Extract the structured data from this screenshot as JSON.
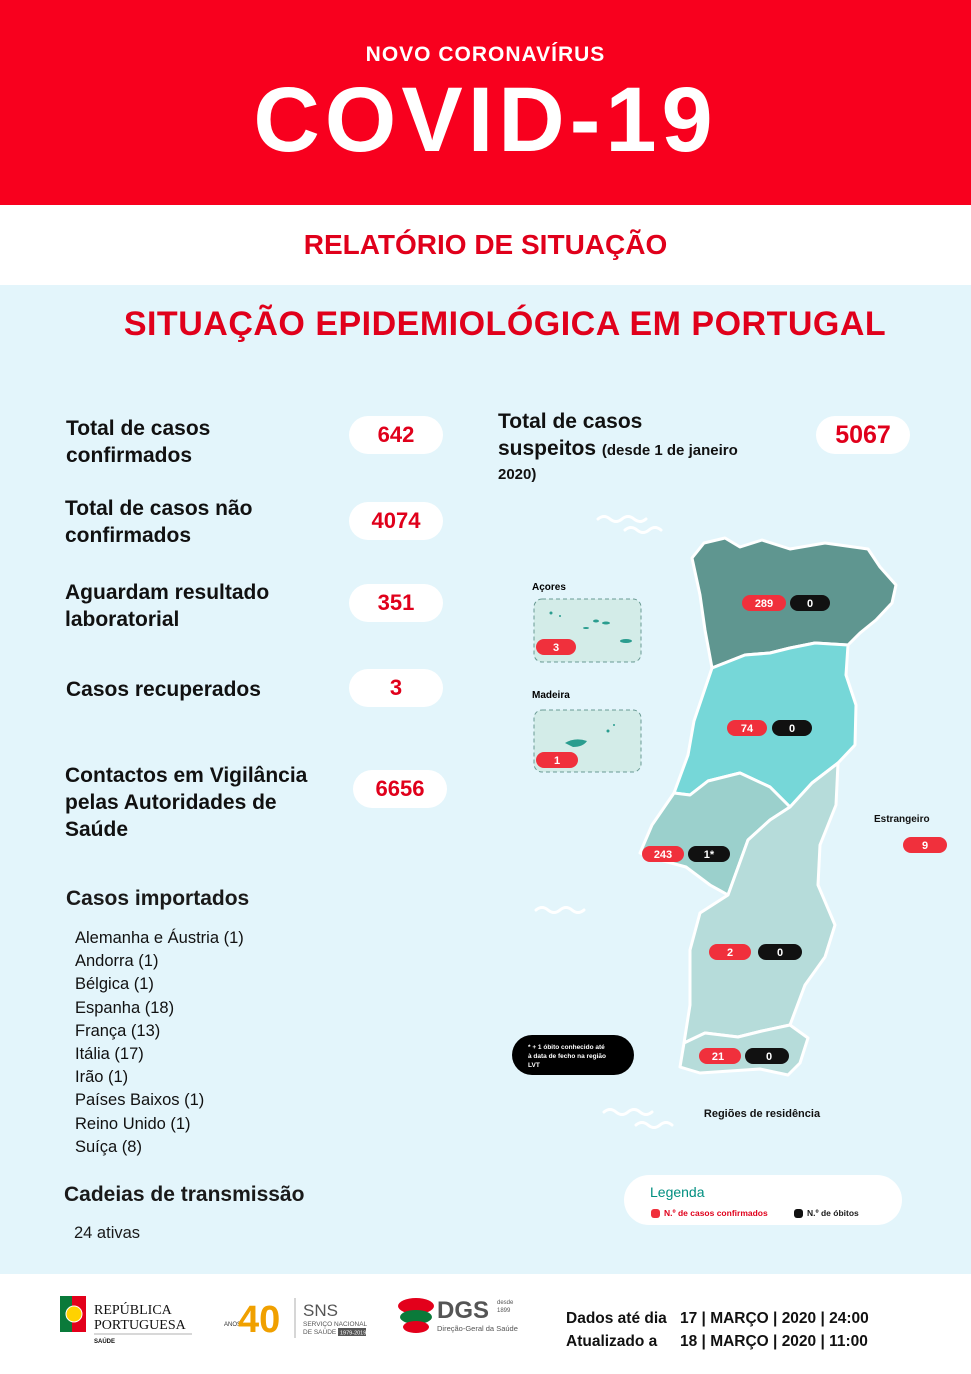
{
  "header": {
    "subtitle": "NOVO CORONAVÍRUS",
    "title": "COVID-19"
  },
  "report_title": "RELATÓRIO DE SITUAÇÃO",
  "section_title": "SITUAÇÃO EPIDEMIOLÓGICA EM PORTUGAL",
  "stats": {
    "confirmed": {
      "label_1": "Total de casos",
      "label_2": "confirmados",
      "value": "642"
    },
    "not_confirmed": {
      "label_1": "Total de casos não",
      "label_2": "confirmados",
      "value": "4074"
    },
    "awaiting": {
      "label_1": "Aguardam resultado",
      "label_2": "laboratorial",
      "value": "351"
    },
    "recovered": {
      "label": "Casos recuperados",
      "value": "3"
    },
    "contacts": {
      "label_1": "Contactos em Vigilância",
      "label_2": "pelas Autoridades de",
      "label_3": "Saúde",
      "value": "6656"
    },
    "suspected": {
      "label_1": "Total de casos",
      "label_2": "suspeitos",
      "label_2_small": "(desde 1 de janeiro",
      "label_3": "2020)",
      "value": "5067"
    }
  },
  "imported": {
    "title": "Casos importados",
    "items": [
      "Alemanha e Áustria (1)",
      "Andorra (1)",
      "Bélgica (1)",
      "Espanha (18)",
      "França (13)",
      "Itália (17)",
      "Irão (1)",
      "Países Baixos (1)",
      "Reino Unido (1)",
      "Suíça (8)"
    ]
  },
  "transmission": {
    "title": "Cadeias de transmissão",
    "value": "24 ativas"
  },
  "map": {
    "azores_label": "Açores",
    "azores_cases": "3",
    "madeira_label": "Madeira",
    "madeira_cases": "1",
    "north": {
      "cases": "289",
      "deaths": "0"
    },
    "centre": {
      "cases": "74",
      "deaths": "0"
    },
    "lvt": {
      "cases": "243",
      "deaths": "1*"
    },
    "alentejo": {
      "cases": "2",
      "deaths": "0"
    },
    "algarve": {
      "cases": "21",
      "deaths": "0"
    },
    "abroad_label": "Estrangeiro",
    "abroad_cases": "9",
    "note_1": "* + 1 óbito conhecido até",
    "note_2": "à data de fecho na região",
    "note_3": "LVT",
    "caption": "Regiões de residência",
    "colors": {
      "north": "#5f9690",
      "centre": "#76d7d8",
      "lvt": "#9bd0cc",
      "south": "#b6dcda",
      "cases": "#f0303c",
      "deaths": "#111111"
    }
  },
  "legend": {
    "title": "Legenda",
    "cases": "N.º de casos confirmados",
    "deaths": "N.º de óbitos"
  },
  "footer": {
    "republica_1": "REPÚBLICA",
    "republica_2": "PORTUGUESA",
    "republica_3": "SAÚDE",
    "anos": "ANOS",
    "forty": "40",
    "sns": "SNS",
    "sns_1": "SERVIÇO NACIONAL",
    "sns_2": "DE SAÚDE",
    "sns_years": "1979-2019",
    "dgs": "DGS",
    "dgs_since": "desde",
    "dgs_year": "1899",
    "dgs_full": "Direção-Geral da Saúde",
    "data_label": "Dados até dia",
    "data_value": "17 | MARÇO | 2020 | 24:00",
    "updated_label": "Atualizado a",
    "updated_value": "18 | MARÇO | 2020 | 11:00"
  }
}
